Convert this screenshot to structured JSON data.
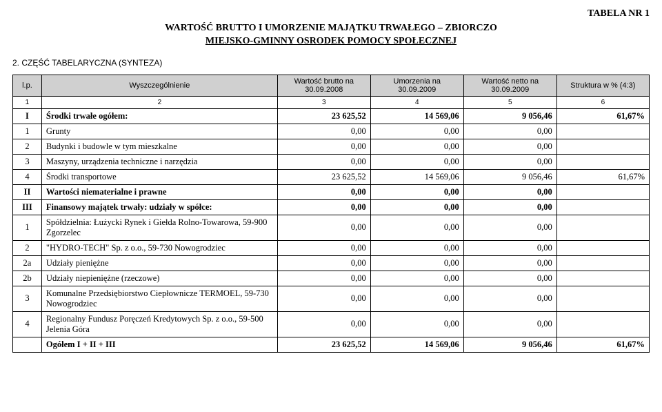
{
  "header": {
    "top_right": "TABELA NR 1",
    "title_line1": "WARTOŚĆ BRUTTO I UMORZENIE MAJĄTKU TRWAŁEGO – ZBIORCZO",
    "title_line2": "MIEJSKO-GMINNY OSRODEK POMOCY SPOŁECZNEJ",
    "section": "2. CZĘŚĆ TABELARYCZNA (SYNTEZA)"
  },
  "columns": {
    "lp": "l.p.",
    "desc": "Wyszczególnienie",
    "c3": "Wartość brutto na 30.09.2008",
    "c4": "Umorzenia na 30.09.2009",
    "c5": "Wartość netto na 30.09.2009",
    "c6": "Struktura w % (4:3)"
  },
  "numrow": {
    "c1": "1",
    "c2": "2",
    "c3": "3",
    "c4": "4",
    "c5": "5",
    "c6": "6"
  },
  "rows": [
    {
      "bold": true,
      "idx": "I",
      "desc": "Środki trwałe ogółem:",
      "v3": "23 625,52",
      "v4": "14 569,06",
      "v5": "9 056,46",
      "v6": "61,67%"
    },
    {
      "bold": false,
      "idx": "1",
      "desc": "Grunty",
      "v3": "0,00",
      "v4": "0,00",
      "v5": "0,00",
      "v6": ""
    },
    {
      "bold": false,
      "idx": "2",
      "desc": "Budynki i budowle w tym mieszkalne",
      "v3": "0,00",
      "v4": "0,00",
      "v5": "0,00",
      "v6": ""
    },
    {
      "bold": false,
      "idx": "3",
      "desc": "Maszyny, urządzenia techniczne i narzędzia",
      "v3": "0,00",
      "v4": "0,00",
      "v5": "0,00",
      "v6": ""
    },
    {
      "bold": false,
      "idx": "4",
      "desc": "Środki transportowe",
      "v3": "23 625,52",
      "v4": "14 569,06",
      "v5": "9 056,46",
      "v6": "61,67%"
    },
    {
      "bold": true,
      "idx": "II",
      "desc": "Wartości niematerialne i prawne",
      "v3": "0,00",
      "v4": "0,00",
      "v5": "0,00",
      "v6": ""
    },
    {
      "bold": true,
      "idx": "III",
      "desc": "Finansowy majątek trwały: udziały w spółce:",
      "v3": "0,00",
      "v4": "0,00",
      "v5": "0,00",
      "v6": ""
    },
    {
      "bold": false,
      "idx": "1",
      "desc": "Spółdzielnia: Łużycki Rynek i Giełda Rolno-Towarowa, 59-900 Zgorzelec",
      "v3": "0,00",
      "v4": "0,00",
      "v5": "0,00",
      "v6": ""
    },
    {
      "bold": false,
      "idx": "2",
      "desc": "\"HYDRO-TECH\" Sp. z o.o., 59-730 Nowogrodziec",
      "v3": "0,00",
      "v4": "0,00",
      "v5": "0,00",
      "v6": ""
    },
    {
      "bold": false,
      "idx": "2a",
      "desc": "Udziały pieniężne",
      "v3": "0,00",
      "v4": "0,00",
      "v5": "0,00",
      "v6": ""
    },
    {
      "bold": false,
      "idx": "2b",
      "desc": "Udziały niepieniężne (rzeczowe)",
      "v3": "0,00",
      "v4": "0,00",
      "v5": "0,00",
      "v6": ""
    },
    {
      "bold": false,
      "idx": "3",
      "desc": "Komunalne Przedsiębiorstwo Ciepłownicze TERMOEL, 59-730 Nowogrodziec",
      "v3": "0,00",
      "v4": "0,00",
      "v5": "0,00",
      "v6": ""
    },
    {
      "bold": false,
      "idx": "4",
      "desc": "Regionalny Fundusz Poręczeń Kredytowych Sp. z o.o., 59-500 Jelenia Góra",
      "v3": "0,00",
      "v4": "0,00",
      "v5": "0,00",
      "v6": ""
    },
    {
      "bold": true,
      "idx": "",
      "desc": "Ogółem I + II + III",
      "v3": "23 625,52",
      "v4": "14 569,06",
      "v5": "9 056,46",
      "v6": "61,67%"
    }
  ]
}
